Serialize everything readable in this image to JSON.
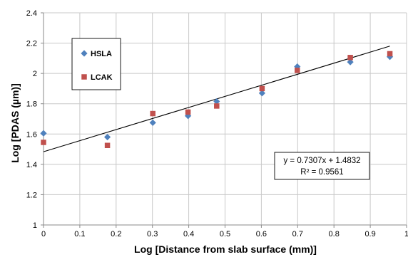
{
  "chart_data": {
    "type": "scatter",
    "title": "",
    "xlabel": "Log [Distance from slab surface (mm)]",
    "ylabel": "Log  [PDAS (µm)]",
    "xlim": [
      0,
      1.0
    ],
    "ylim": [
      1,
      2.4
    ],
    "xticks": [
      "0",
      "0.1",
      "0.2",
      "0.3",
      "0.4",
      "0.5",
      "0.6",
      "0.7",
      "0.8",
      "0.9",
      "1"
    ],
    "yticks": [
      "1",
      "1.2",
      "1.4",
      "1.6",
      "1.8",
      "2",
      "2.2",
      "2.4"
    ],
    "grid": true,
    "legend_placement": "top-left",
    "series": [
      {
        "name": "HSLA",
        "marker": "diamond",
        "color": "#4f81bd",
        "x": [
          0.0,
          0.176,
          0.301,
          0.398,
          0.477,
          0.602,
          0.699,
          0.845,
          0.954
        ],
        "y": [
          1.605,
          1.58,
          1.675,
          1.72,
          1.815,
          1.87,
          2.045,
          2.075,
          2.11
        ]
      },
      {
        "name": "LCAK",
        "marker": "square",
        "color": "#c0504d",
        "x": [
          0.0,
          0.176,
          0.301,
          0.398,
          0.477,
          0.602,
          0.699,
          0.845,
          0.954
        ],
        "y": [
          1.545,
          1.525,
          1.735,
          1.745,
          1.785,
          1.9,
          2.02,
          2.105,
          2.13
        ]
      }
    ],
    "trendline": {
      "slope": 0.7307,
      "intercept": 1.4832,
      "x_range": [
        0,
        0.954
      ],
      "color": "#000000"
    },
    "annotations": {
      "equation": "y = 0.7307x + 1.4832",
      "r_squared": "R² = 0.9561"
    }
  }
}
